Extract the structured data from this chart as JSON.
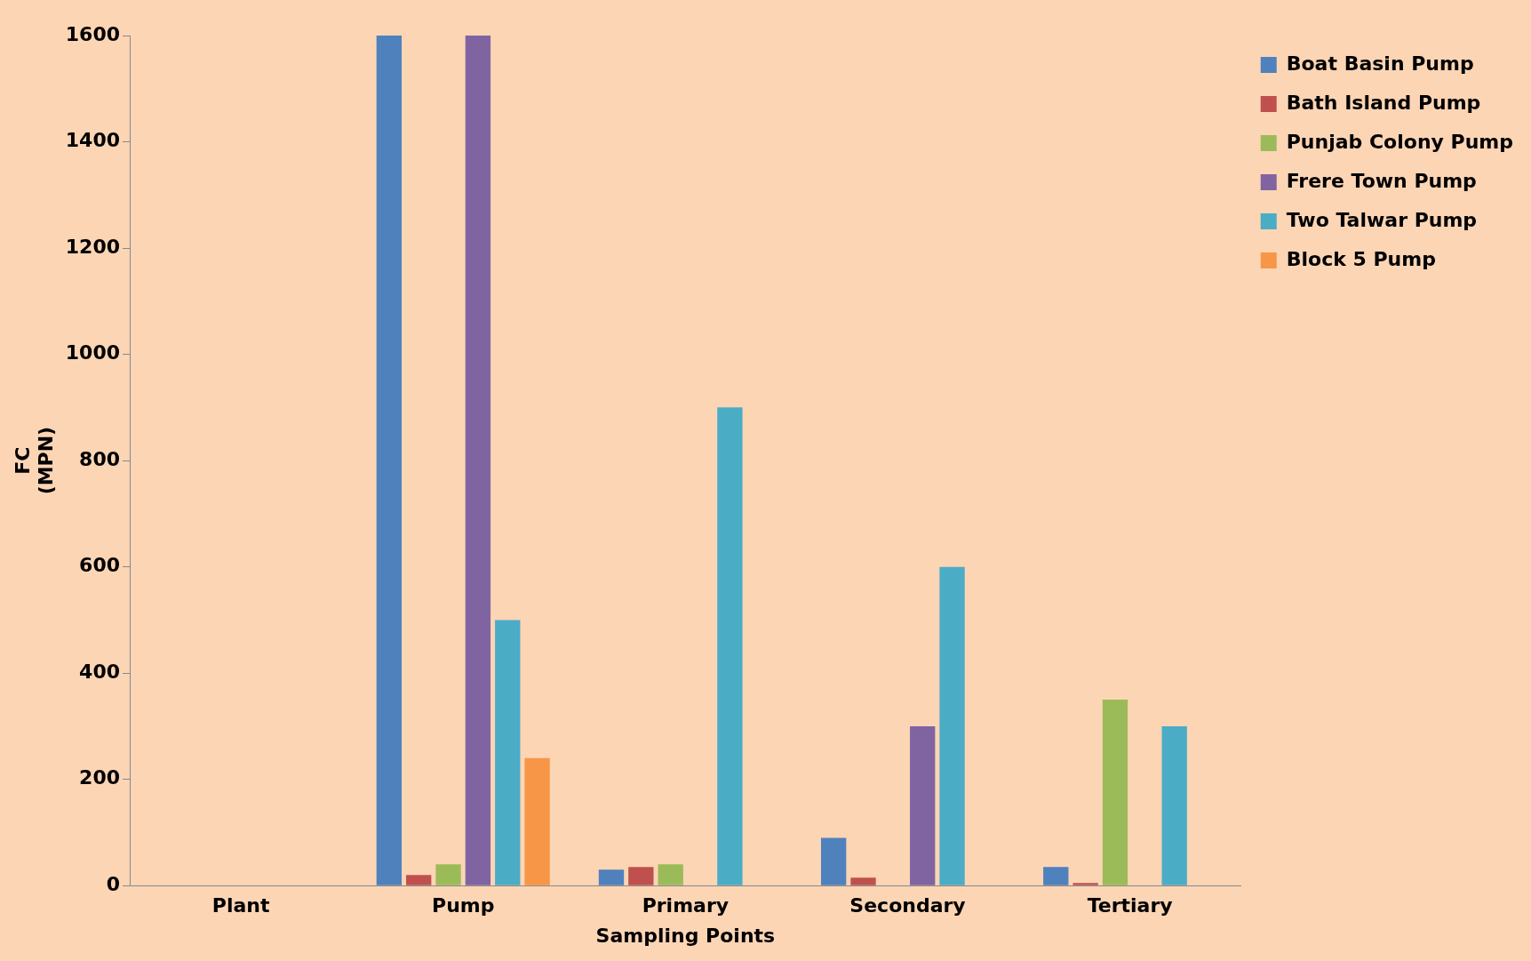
{
  "chart_data": {
    "type": "bar",
    "xlabel": "Sampling Points",
    "ylabel": "FC\n(MPN)",
    "categories": [
      "Plant",
      "Pump",
      "Primary",
      "Secondary",
      "Tertiary"
    ],
    "series": [
      {
        "name": "Boat Basin Pump",
        "color": "#4f81bd",
        "values": [
          0,
          1600,
          30,
          90,
          35
        ]
      },
      {
        "name": "Bath Island Pump",
        "color": "#c0504d",
        "values": [
          0,
          20,
          35,
          15,
          5
        ]
      },
      {
        "name": "Punjab Colony Pump",
        "color": "#9bbb59",
        "values": [
          0,
          40,
          40,
          0,
          350
        ]
      },
      {
        "name": "Frere Town Pump",
        "color": "#8064a2",
        "values": [
          0,
          1600,
          0,
          300,
          0
        ]
      },
      {
        "name": "Two Talwar Pump",
        "color": "#4bacc6",
        "values": [
          0,
          500,
          900,
          600,
          300
        ]
      },
      {
        "name": "Block 5 Pump",
        "color": "#f79646",
        "values": [
          0,
          240,
          0,
          0,
          0
        ]
      }
    ],
    "ylim": [
      0,
      1600
    ],
    "yticks": [
      0,
      200,
      400,
      600,
      800,
      1000,
      1200,
      1400,
      1600
    ],
    "grid": false,
    "legend": "top right"
  }
}
